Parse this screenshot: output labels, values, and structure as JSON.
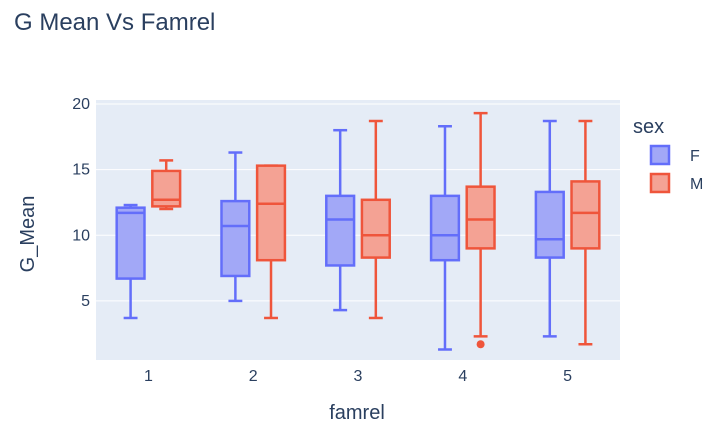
{
  "chart_data": {
    "type": "box",
    "title": "G Mean Vs Famrel",
    "xlabel": "famrel",
    "ylabel": "G_Mean",
    "categories": [
      "1",
      "2",
      "3",
      "4",
      "5"
    ],
    "y_ticks": [
      5,
      10,
      15,
      20
    ],
    "ylim": [
      0.5,
      20.3
    ],
    "grid": true,
    "legend": {
      "title": "sex",
      "placement": "right"
    },
    "series": [
      {
        "name": "F",
        "color": "#636efa",
        "fill": "#a2a8f7",
        "boxes": [
          {
            "category": "1",
            "min": 3.7,
            "q1": 6.7,
            "median": 11.7,
            "q3": 12.1,
            "max": 12.3,
            "outliers": []
          },
          {
            "category": "2",
            "min": 5.0,
            "q1": 6.9,
            "median": 10.7,
            "q3": 12.6,
            "max": 16.3,
            "outliers": []
          },
          {
            "category": "3",
            "min": 4.3,
            "q1": 7.7,
            "median": 11.2,
            "q3": 13.0,
            "max": 18.0,
            "outliers": []
          },
          {
            "category": "4",
            "min": 1.3,
            "q1": 8.1,
            "median": 10.0,
            "q3": 13.0,
            "max": 18.3,
            "outliers": []
          },
          {
            "category": "5",
            "min": 2.3,
            "q1": 8.3,
            "median": 9.7,
            "q3": 13.3,
            "max": 18.7,
            "outliers": []
          }
        ]
      },
      {
        "name": "M",
        "color": "#ef553b",
        "fill": "#f4a294",
        "boxes": [
          {
            "category": "1",
            "min": 12.0,
            "q1": 12.2,
            "median": 12.7,
            "q3": 14.9,
            "max": 15.7,
            "outliers": []
          },
          {
            "category": "2",
            "min": 3.7,
            "q1": 8.1,
            "median": 12.4,
            "q3": 15.3,
            "max": 15.3,
            "outliers": []
          },
          {
            "category": "3",
            "min": 3.7,
            "q1": 8.3,
            "median": 10.0,
            "q3": 12.7,
            "max": 18.7,
            "outliers": []
          },
          {
            "category": "4",
            "min": 2.3,
            "q1": 9.0,
            "median": 11.2,
            "q3": 13.7,
            "max": 19.3,
            "outliers": [
              1.7
            ]
          },
          {
            "category": "5",
            "min": 1.7,
            "q1": 9.0,
            "median": 11.7,
            "q3": 14.1,
            "max": 18.7,
            "outliers": []
          }
        ]
      }
    ]
  }
}
